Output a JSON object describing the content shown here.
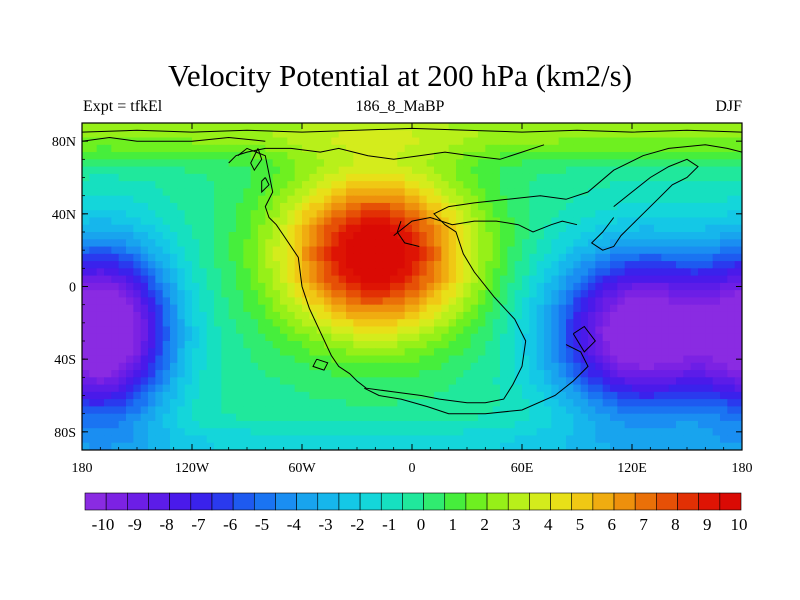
{
  "title": "Velocity Potential at 200 hPa (km2/s)",
  "left_label": "Expt = tfkEl",
  "center_label": "186_8_MaBP",
  "right_label": "DJF",
  "map": {
    "lon_range": [
      -180,
      180
    ],
    "lat_range": [
      -90,
      90
    ],
    "x_ticks": [
      {
        "value": -180,
        "label": "180"
      },
      {
        "value": -120,
        "label": "120W"
      },
      {
        "value": -60,
        "label": "60W"
      },
      {
        "value": 0,
        "label": "0"
      },
      {
        "value": 60,
        "label": "60E"
      },
      {
        "value": 120,
        "label": "120E"
      },
      {
        "value": 180,
        "label": "180"
      }
    ],
    "y_ticks": [
      {
        "value": 80,
        "label": "80N"
      },
      {
        "value": 40,
        "label": "40N"
      },
      {
        "value": 0,
        "label": "0"
      },
      {
        "value": -40,
        "label": "40S"
      },
      {
        "value": -80,
        "label": "80S"
      }
    ],
    "field_centers": [
      {
        "lon": -20,
        "lat": 20,
        "value": 10
      },
      {
        "lon": 125,
        "lat": -25,
        "value": -10
      },
      {
        "lon": -160,
        "lat": -25,
        "value": -10
      }
    ]
  },
  "colorbar": {
    "min": -10,
    "max": 10,
    "labels": [
      "-10",
      "-9",
      "-8",
      "-7",
      "-6",
      "-5",
      "-4",
      "-3",
      "-2",
      "-1",
      "0",
      "1",
      "2",
      "3",
      "4",
      "5",
      "6",
      "7",
      "8",
      "9",
      "10"
    ],
    "colors": [
      "#8a2be2",
      "#7c22e3",
      "#6c1ee6",
      "#5c1ce8",
      "#4a1aea",
      "#3a22ec",
      "#2a3aee",
      "#1e5af0",
      "#1a74f2",
      "#1a8ef2",
      "#18a4ee",
      "#16b6ec",
      "#14c8e6",
      "#14d6da",
      "#16e0c0",
      "#20e89c",
      "#30ec70",
      "#46ee3c",
      "#6ef020",
      "#96f018",
      "#b8f01a",
      "#d4ec1c",
      "#e8e018",
      "#f0c814",
      "#f0ac10",
      "#ee900c",
      "#ea7008",
      "#e65006",
      "#e23004",
      "#de1404",
      "#da0a04"
    ]
  }
}
